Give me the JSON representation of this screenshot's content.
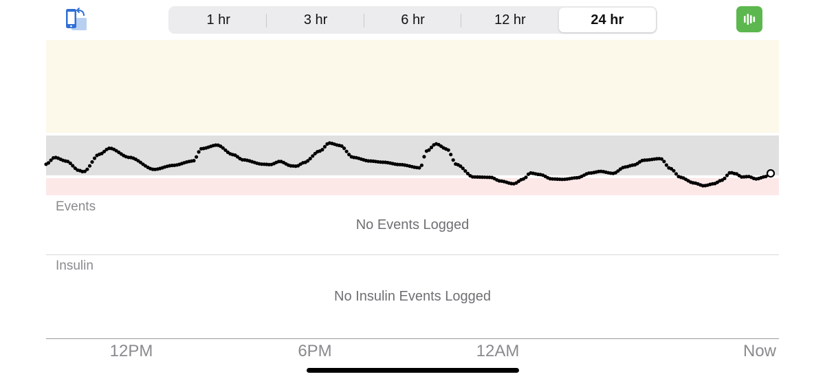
{
  "toolbar": {
    "rotate_icon": "rotate-device-icon",
    "segments": [
      "1 hr",
      "3 hr",
      "6 hr",
      "12 hr",
      "24 hr"
    ],
    "selected_segment": "24 hr",
    "audio_icon": "audio-waveform-icon",
    "audio_button_color": "#5cb84e"
  },
  "chart": {
    "colors": {
      "high_zone": "#fcf8ea",
      "target_zone": "#e0e0e0",
      "low_zone": "#fde8e8",
      "line": "#000000"
    },
    "x_ticks": [
      "12PM",
      "6PM",
      "12AM",
      "Now"
    ]
  },
  "chart_data": {
    "type": "scatter",
    "x_labels": [
      "12PM",
      "6PM",
      "12AM",
      "Now"
    ],
    "bands": [
      "high",
      "target",
      "low"
    ],
    "y_level_pct": [
      [
        0,
        28
      ],
      [
        1.3,
        45
      ],
      [
        3,
        36
      ],
      [
        5,
        12
      ],
      [
        5.6,
        9
      ],
      [
        8,
        53
      ],
      [
        9.5,
        68
      ],
      [
        12.5,
        45
      ],
      [
        16.2,
        15
      ],
      [
        19,
        25
      ],
      [
        22,
        36
      ],
      [
        23.3,
        67
      ],
      [
        25.6,
        76
      ],
      [
        28,
        52
      ],
      [
        29.5,
        39
      ],
      [
        32.5,
        28
      ],
      [
        33.6,
        27
      ],
      [
        35,
        35
      ],
      [
        36.7,
        24
      ],
      [
        37.5,
        23
      ],
      [
        38.6,
        32
      ],
      [
        41,
        61
      ],
      [
        42.4,
        81
      ],
      [
        44,
        75
      ],
      [
        46,
        45
      ],
      [
        48.5,
        36
      ],
      [
        50.5,
        33
      ],
      [
        53,
        27
      ],
      [
        56,
        19
      ],
      [
        57,
        61
      ],
      [
        58.4,
        79
      ],
      [
        60,
        66
      ],
      [
        61.5,
        27
      ],
      [
        64,
        -4
      ],
      [
        66.6,
        -5
      ],
      [
        68,
        -14
      ],
      [
        70,
        -21
      ],
      [
        71.5,
        -9
      ],
      [
        72.5,
        6
      ],
      [
        74,
        2
      ],
      [
        75.7,
        -9
      ],
      [
        77.4,
        -10
      ],
      [
        79.5,
        -6
      ],
      [
        81.5,
        6
      ],
      [
        83,
        10
      ],
      [
        84.9,
        5
      ],
      [
        86.7,
        21
      ],
      [
        88,
        26
      ],
      [
        89.5,
        38
      ],
      [
        92,
        42
      ],
      [
        93.5,
        17
      ],
      [
        95,
        -5
      ],
      [
        97,
        -19
      ],
      [
        98.5,
        -26
      ],
      [
        100,
        -21
      ],
      [
        101.2,
        -12
      ],
      [
        102.5,
        7
      ],
      [
        103.3,
        4
      ],
      [
        104.2,
        -4
      ],
      [
        105.2,
        -3
      ],
      [
        106.3,
        -9
      ],
      [
        107.8,
        -3
      ],
      [
        108.5,
        5
      ]
    ]
  },
  "events": {
    "label": "Events",
    "empty_message": "No Events Logged"
  },
  "insulin": {
    "label": "Insulin",
    "empty_message": "No Insulin Events Logged"
  }
}
